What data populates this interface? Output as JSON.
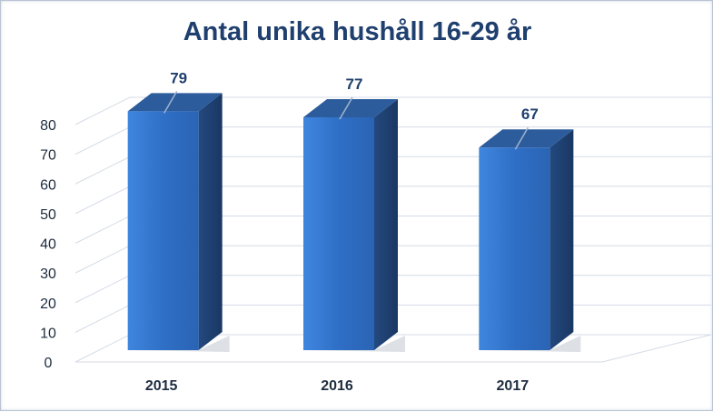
{
  "chart_data": {
    "type": "bar",
    "title": "Antal unika hushåll 16-29 år",
    "categories": [
      "2015",
      "2016",
      "2017"
    ],
    "values": [
      79,
      77,
      67
    ],
    "y_ticks": [
      "0",
      "10",
      "20",
      "30",
      "40",
      "50",
      "60",
      "70",
      "80"
    ],
    "ylim": [
      0,
      80
    ],
    "grid": true,
    "style": "3d-column",
    "bar_color": "#2e6fc4"
  }
}
